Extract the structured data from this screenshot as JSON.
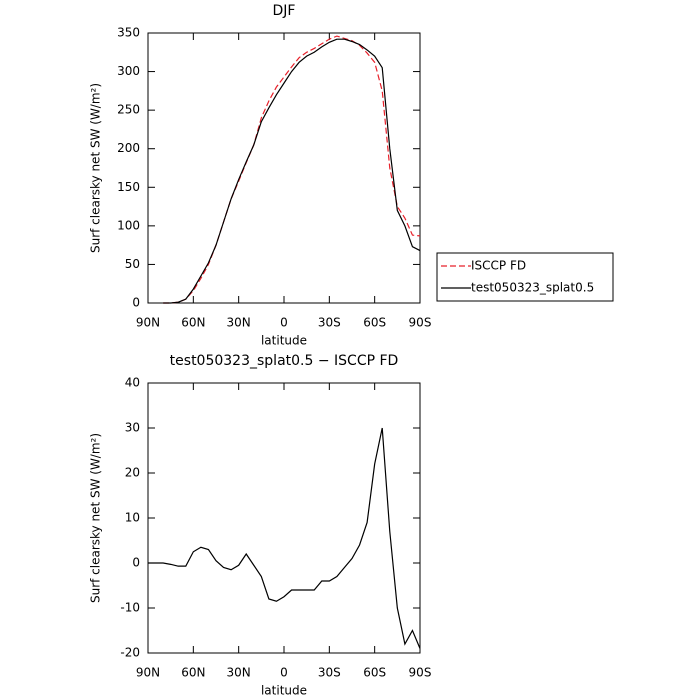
{
  "chart_data": [
    {
      "type": "line",
      "title": "DJF",
      "xlabel": "latitude",
      "ylabel": "Surf clearsky net SW (W/m²)",
      "x": [
        80,
        75,
        70,
        65,
        60,
        55,
        50,
        45,
        40,
        35,
        30,
        25,
        20,
        15,
        10,
        5,
        0,
        -5,
        -10,
        -15,
        -20,
        -25,
        -30,
        -35,
        -40,
        -45,
        -50,
        -55,
        -60,
        -65,
        -70,
        -75,
        -80,
        -85,
        -90
      ],
      "series": [
        {
          "name": "ISCCP FD",
          "color": "#e8202a",
          "dashed": true,
          "values": [
            0,
            0,
            1,
            5,
            16,
            32,
            50,
            75,
            105,
            135,
            158,
            182,
            205,
            240,
            262,
            280,
            293,
            306,
            318,
            325,
            330,
            336,
            342,
            346,
            343,
            340,
            334,
            324,
            312,
            275,
            175,
            125,
            110,
            88,
            87
          ]
        },
        {
          "name": "test050323_splat0.5",
          "color": "#000000",
          "dashed": false,
          "values": [
            0,
            0,
            1,
            5,
            18,
            35,
            52,
            75,
            105,
            135,
            160,
            183,
            205,
            235,
            253,
            270,
            285,
            300,
            312,
            320,
            325,
            332,
            338,
            342,
            342,
            339,
            335,
            328,
            320,
            305,
            200,
            120,
            100,
            73,
            68
          ]
        }
      ],
      "xlim": [
        90,
        -90
      ],
      "xticks": [
        {
          "value": 90,
          "label": "90N"
        },
        {
          "value": 60,
          "label": "60N"
        },
        {
          "value": 30,
          "label": "30N"
        },
        0,
        {
          "value": -30,
          "label": "30S"
        },
        {
          "value": -60,
          "label": "60S"
        },
        {
          "value": -90,
          "label": "90S"
        }
      ],
      "ylim": [
        0,
        350
      ],
      "yticks": [
        0,
        50,
        100,
        150,
        200,
        250,
        300,
        350
      ],
      "legend": "outside-right"
    },
    {
      "type": "line",
      "title": "test050323_splat0.5 − ISCCP FD",
      "xlabel": "latitude",
      "ylabel": "Surf clearsky net SW (W/m²)",
      "x": [
        90,
        85,
        80,
        75,
        70,
        65,
        60,
        55,
        50,
        45,
        40,
        35,
        30,
        25,
        20,
        15,
        10,
        5,
        0,
        -5,
        -10,
        -15,
        -20,
        -25,
        -30,
        -35,
        -40,
        -45,
        -50,
        -55,
        -60,
        -65,
        -70,
        -75,
        -80,
        -85,
        -90
      ],
      "series": [
        {
          "color": "#000000",
          "dashed": false,
          "values": [
            0,
            0,
            0,
            -0.3,
            -0.7,
            -0.7,
            2.5,
            3.5,
            3,
            0.5,
            -1,
            -1.5,
            -0.5,
            2,
            -0.5,
            -3,
            -8,
            -8.5,
            -7.5,
            -6,
            -6,
            -6,
            -6,
            -4,
            -4,
            -3,
            -1,
            1,
            4,
            9,
            22,
            30,
            7,
            -10,
            -18,
            -15,
            -19
          ]
        }
      ],
      "xlim": [
        90,
        -90
      ],
      "xticks": [
        {
          "value": 90,
          "label": "90N"
        },
        {
          "value": 60,
          "label": "60N"
        },
        {
          "value": 30,
          "label": "30N"
        },
        0,
        {
          "value": -30,
          "label": "30S"
        },
        {
          "value": -60,
          "label": "60S"
        },
        {
          "value": -90,
          "label": "90S"
        }
      ],
      "ylim": [
        -20,
        40
      ],
      "yticks": [
        -20,
        -10,
        0,
        10,
        20,
        30,
        40
      ]
    }
  ]
}
